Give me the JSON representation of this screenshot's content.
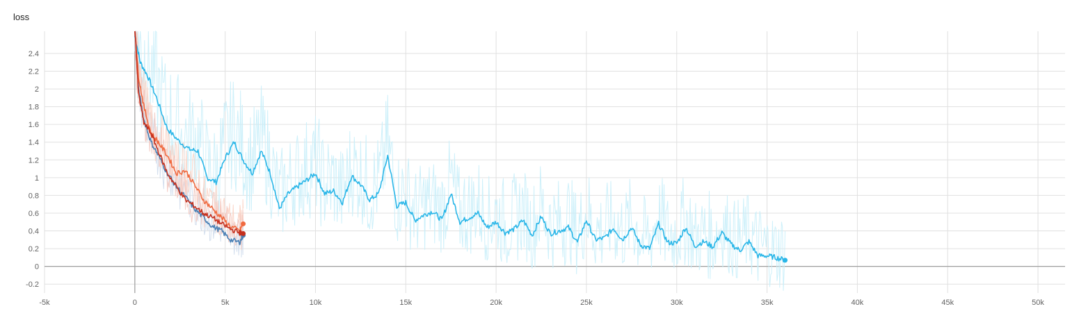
{
  "card": {
    "title": "loss"
  },
  "chart_data": {
    "type": "line",
    "title": "loss",
    "xlim": [
      -5000,
      51500
    ],
    "ylim": [
      -0.3,
      2.65
    ],
    "x_ticks": [
      -5000,
      0,
      5000,
      10000,
      15000,
      20000,
      25000,
      30000,
      35000,
      40000,
      45000,
      50000
    ],
    "x_tick_labels": [
      "-5k",
      "0",
      "5k",
      "10k",
      "15k",
      "20k",
      "25k",
      "30k",
      "35k",
      "40k",
      "45k",
      "50k"
    ],
    "y_ticks": [
      -0.2,
      0,
      0.2,
      0.4,
      0.6,
      0.8,
      1,
      1.2,
      1.4,
      1.6,
      1.8,
      2,
      2.2,
      2.4
    ],
    "y_tick_labels": [
      "-0.2",
      "0",
      "0.2",
      "0.4",
      "0.6",
      "0.8",
      "1",
      "1.2",
      "1.4",
      "1.6",
      "1.8",
      "2",
      "2.2",
      "2.4"
    ],
    "grid": true,
    "series": [
      {
        "color": "#29b6e8",
        "raw_color": "#c8eefa",
        "x": [
          0,
          300,
          700,
          1200,
          1800,
          2400,
          3000,
          3500,
          4000,
          4500,
          5000,
          5500,
          6000,
          6500,
          7000,
          7500,
          8000,
          8500,
          9000,
          9500,
          10000,
          10500,
          11000,
          11500,
          12000,
          12500,
          13000,
          13500,
          14000,
          14500,
          15000,
          15500,
          16000,
          16500,
          17000,
          17500,
          18000,
          18500,
          19000,
          19500,
          20000,
          20500,
          21000,
          21500,
          22000,
          22500,
          23000,
          23500,
          24000,
          24500,
          25000,
          25500,
          26000,
          26500,
          27000,
          27500,
          28000,
          28500,
          29000,
          29500,
          30000,
          30500,
          31000,
          31500,
          32000,
          32500,
          33000,
          33500,
          34000,
          34500,
          35000,
          35500,
          36000
        ],
        "y": [
          2.6,
          2.3,
          2.15,
          1.9,
          1.55,
          1.42,
          1.32,
          1.3,
          1.0,
          0.95,
          1.22,
          1.4,
          1.2,
          1.05,
          1.3,
          1.05,
          0.65,
          0.82,
          0.9,
          0.97,
          1.05,
          0.82,
          0.85,
          0.72,
          1.02,
          0.92,
          0.75,
          0.82,
          1.25,
          0.68,
          0.72,
          0.52,
          0.58,
          0.62,
          0.52,
          0.82,
          0.5,
          0.55,
          0.6,
          0.44,
          0.5,
          0.38,
          0.42,
          0.52,
          0.35,
          0.56,
          0.37,
          0.4,
          0.44,
          0.27,
          0.52,
          0.3,
          0.32,
          0.43,
          0.3,
          0.44,
          0.24,
          0.2,
          0.48,
          0.27,
          0.26,
          0.44,
          0.23,
          0.28,
          0.22,
          0.38,
          0.25,
          0.18,
          0.28,
          0.12,
          0.12,
          0.1,
          0.07
        ]
      },
      {
        "color": "#4a80b5",
        "raw_color": "#cfdcec",
        "x": [
          0,
          200,
          500,
          900,
          1300,
          1800,
          2300,
          2800,
          3300,
          3800,
          4300,
          4800,
          5300,
          5800,
          6000
        ],
        "y": [
          2.7,
          2.0,
          1.65,
          1.4,
          1.25,
          1.05,
          0.9,
          0.78,
          0.65,
          0.55,
          0.45,
          0.4,
          0.3,
          0.27,
          0.35
        ]
      },
      {
        "color": "#f06a40",
        "raw_color": "#fbd3c4",
        "x": [
          0,
          200,
          500,
          900,
          1300,
          1800,
          2300,
          2800,
          3300,
          3800,
          4300,
          4800,
          5300,
          5800,
          6000
        ],
        "y": [
          2.7,
          2.15,
          1.8,
          1.5,
          1.4,
          1.25,
          1.05,
          1.08,
          0.92,
          0.75,
          0.65,
          0.55,
          0.45,
          0.4,
          0.48
        ]
      },
      {
        "color": "#c5301e",
        "raw_color": "#f3c8c0",
        "x": [
          0,
          200,
          500,
          900,
          1300,
          1800,
          2300,
          2800,
          3300,
          3800,
          4300,
          4800,
          5300,
          5800,
          6000
        ],
        "y": [
          2.7,
          1.95,
          1.62,
          1.5,
          1.3,
          1.05,
          0.9,
          0.75,
          0.68,
          0.6,
          0.55,
          0.48,
          0.42,
          0.38,
          0.37
        ]
      }
    ]
  }
}
